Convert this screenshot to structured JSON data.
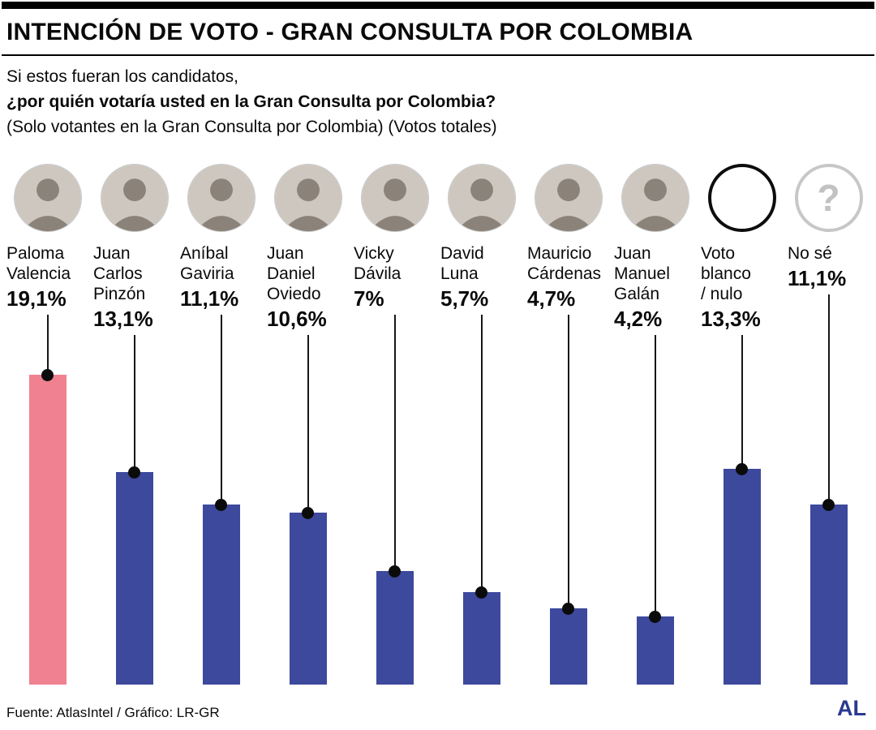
{
  "header": {
    "title": "INTENCIÓN DE VOTO - GRAN CONSULTA POR COLOMBIA",
    "subtitle_line1": "Si estos fueran los candidatos,",
    "subtitle_line2": "¿por quién votaría usted en la Gran Consulta por Colombia?",
    "subtitle_line3": "(Solo votantes en la Gran Consulta por Colombia) (Votos totales)"
  },
  "footer": {
    "source": "Fuente: AtlasIntel / Gráfico: LR-GR",
    "logo": "AL",
    "logo_color": "#2b3990"
  },
  "colors": {
    "highlight_bar": "#ef8190",
    "default_bar": "#3d499c",
    "dot": "#0b0b0b"
  },
  "chart_data": {
    "type": "bar",
    "title": "INTENCIÓN DE VOTO - GRAN CONSULTA POR COLOMBIA",
    "categories": [
      "Paloma Valencia",
      "Juan Carlos Pinzón",
      "Aníbal Gaviria",
      "Juan Daniel Oviedo",
      "Vicky Dávila",
      "David Luna",
      "Mauricio Cárdenas",
      "Juan Manuel Galán",
      "Voto blanco / nulo",
      "No sé"
    ],
    "values": [
      19.1,
      13.1,
      11.1,
      10.6,
      7,
      5.7,
      4.7,
      4.2,
      13.3,
      11.1
    ],
    "value_labels": [
      "19,1%",
      "13,1%",
      "11,1%",
      "10,6%",
      "7%",
      "5,7%",
      "4,7%",
      "4,2%",
      "13,3%",
      "11,1%"
    ],
    "xlabel": "",
    "ylabel": "",
    "ylim": [
      0,
      20
    ],
    "grid": false,
    "legend": false,
    "style": "lollipop bars with dot markers, first bar highlighted pink, others dark blue"
  },
  "candidates": [
    {
      "name": "Paloma\nValencia",
      "value": 19.1,
      "value_label": "19,1%",
      "color": "#ef8190",
      "avatar": "photo"
    },
    {
      "name": "Juan\nCarlos\nPinzón",
      "value": 13.1,
      "value_label": "13,1%",
      "color": "#3d499c",
      "avatar": "photo"
    },
    {
      "name": "Aníbal\nGaviria",
      "value": 11.1,
      "value_label": "11,1%",
      "color": "#3d499c",
      "avatar": "photo"
    },
    {
      "name": "Juan\nDaniel\nOviedo",
      "value": 10.6,
      "value_label": "10,6%",
      "color": "#3d499c",
      "avatar": "photo"
    },
    {
      "name": "Vicky\nDávila",
      "value": 7,
      "value_label": "7%",
      "color": "#3d499c",
      "avatar": "photo"
    },
    {
      "name": "David\nLuna",
      "value": 5.7,
      "value_label": "5,7%",
      "color": "#3d499c",
      "avatar": "photo"
    },
    {
      "name": "Mauricio\nCárdenas",
      "value": 4.7,
      "value_label": "4,7%",
      "color": "#3d499c",
      "avatar": "photo"
    },
    {
      "name": "Juan\nManuel\nGalán",
      "value": 4.2,
      "value_label": "4,2%",
      "color": "#3d499c",
      "avatar": "photo"
    },
    {
      "name": "Voto\nblanco\n/ nulo",
      "value": 13.3,
      "value_label": "13,3%",
      "color": "#3d499c",
      "avatar": "blank"
    },
    {
      "name": "No sé",
      "value": 11.1,
      "value_label": "11,1%",
      "color": "#3d499c",
      "avatar": "question",
      "glyph": "?"
    }
  ]
}
